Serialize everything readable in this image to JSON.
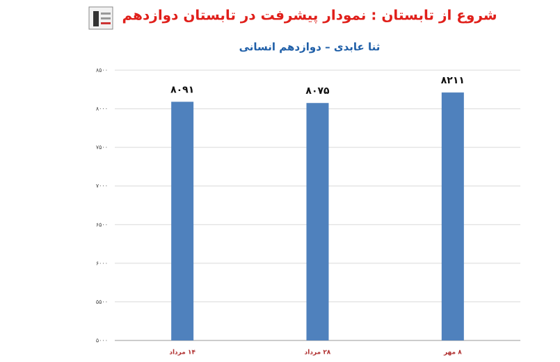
{
  "chart_data": {
    "type": "bar",
    "title": "شروع از تابستان : نمودار پیشرفت در تابستان دوازدهم",
    "subtitle": "ثنا عابدی – دوازدهم انسانی",
    "categories": [
      "۱۴ مرداد",
      "۲۸ مرداد",
      "۸ مهر"
    ],
    "values": [
      8091,
      8075,
      8211
    ],
    "value_labels": [
      "۸۰۹۱",
      "۸۰۷۵",
      "۸۲۱۱"
    ],
    "color": "#4f81bd",
    "ylim": [
      5000,
      8500
    ],
    "yticks": [
      {
        "value": 5000,
        "label": "۵۰۰۰"
      },
      {
        "value": 5500,
        "label": "۵۵۰۰"
      },
      {
        "value": 6000,
        "label": "۶۰۰۰"
      },
      {
        "value": 6500,
        "label": "۶۵۰۰"
      },
      {
        "value": 7000,
        "label": "۷۰۰۰"
      },
      {
        "value": 7500,
        "label": "۷۵۰۰"
      },
      {
        "value": 8000,
        "label": "۸۰۰۰"
      },
      {
        "value": 8500,
        "label": "۸۵۰۰"
      }
    ],
    "grid": true
  }
}
